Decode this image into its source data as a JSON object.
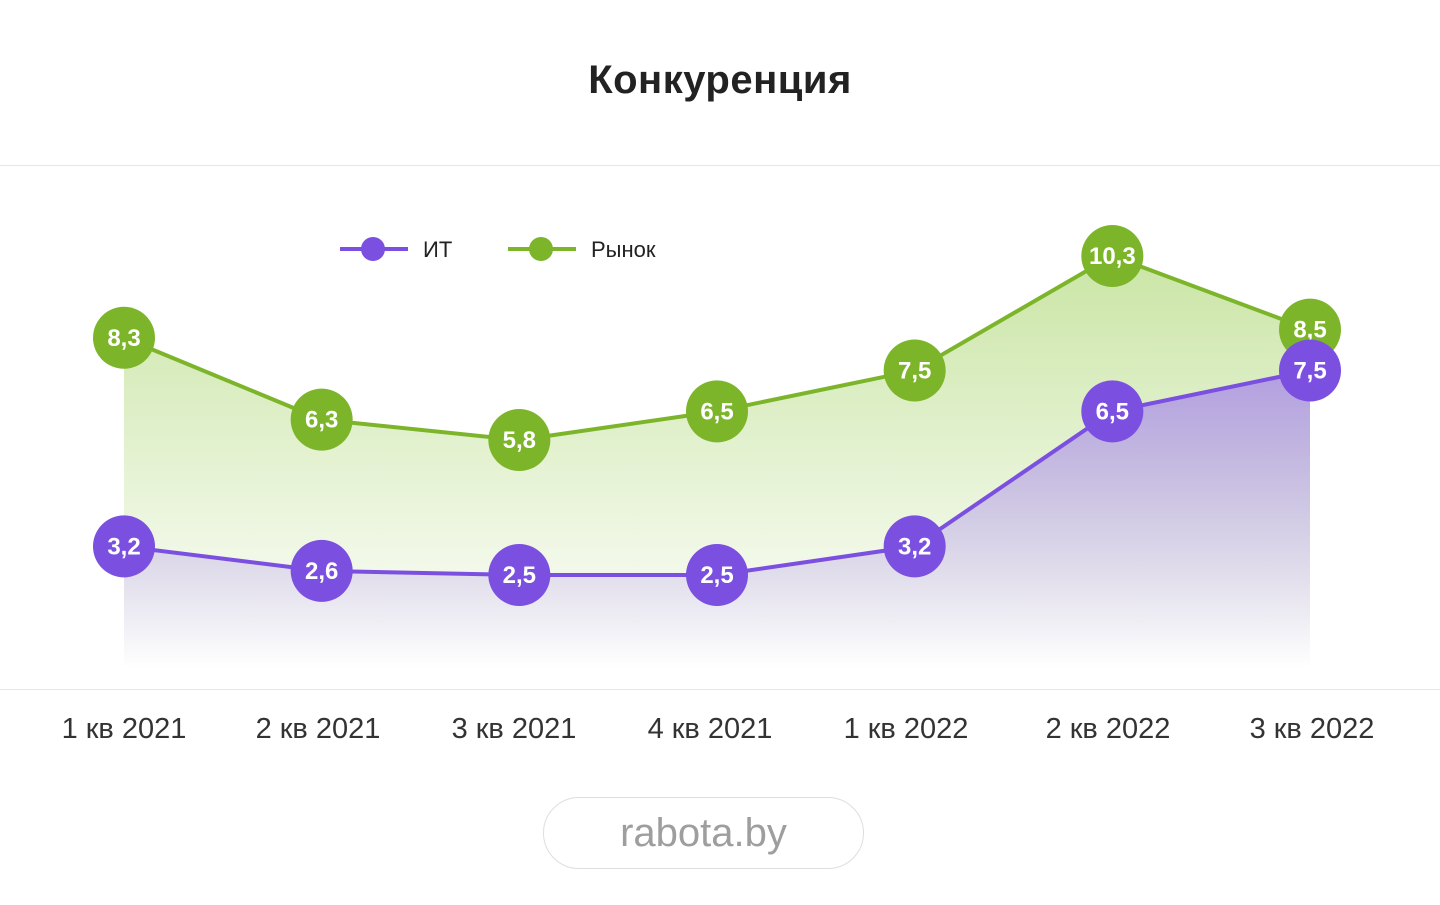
{
  "title": "Конкуренция",
  "watermark": "rabota.by",
  "colors": {
    "it": "#7b4fe0",
    "market": "#7db52a",
    "title": "#222222",
    "axis_text": "#333333"
  },
  "chart_data": {
    "type": "line",
    "title": "Конкуренция",
    "categories": [
      "1 кв 2021",
      "2 кв 2021",
      "3 кв 2021",
      "4 кв 2021",
      "1 кв 2022",
      "2 кв 2022",
      "3 кв 2022"
    ],
    "series": [
      {
        "name": "ИТ",
        "key": "it",
        "color": "#7b4fe0",
        "values": [
          3.2,
          2.6,
          2.5,
          2.5,
          3.2,
          6.5,
          7.5
        ],
        "labels": [
          "3,2",
          "2,6",
          "2,5",
          "2,5",
          "3,2",
          "6,5",
          "7,5"
        ]
      },
      {
        "name": "Рынок",
        "key": "market",
        "color": "#7db52a",
        "values": [
          8.3,
          6.3,
          5.8,
          6.5,
          7.5,
          10.3,
          8.5
        ],
        "labels": [
          "8,3",
          "6,3",
          "5,8",
          "6,5",
          "7,5",
          "10,3",
          "8,5"
        ]
      }
    ],
    "area_fill": true,
    "ylim": [
      -0.5,
      11
    ],
    "legend": "top-left",
    "grid": false
  }
}
